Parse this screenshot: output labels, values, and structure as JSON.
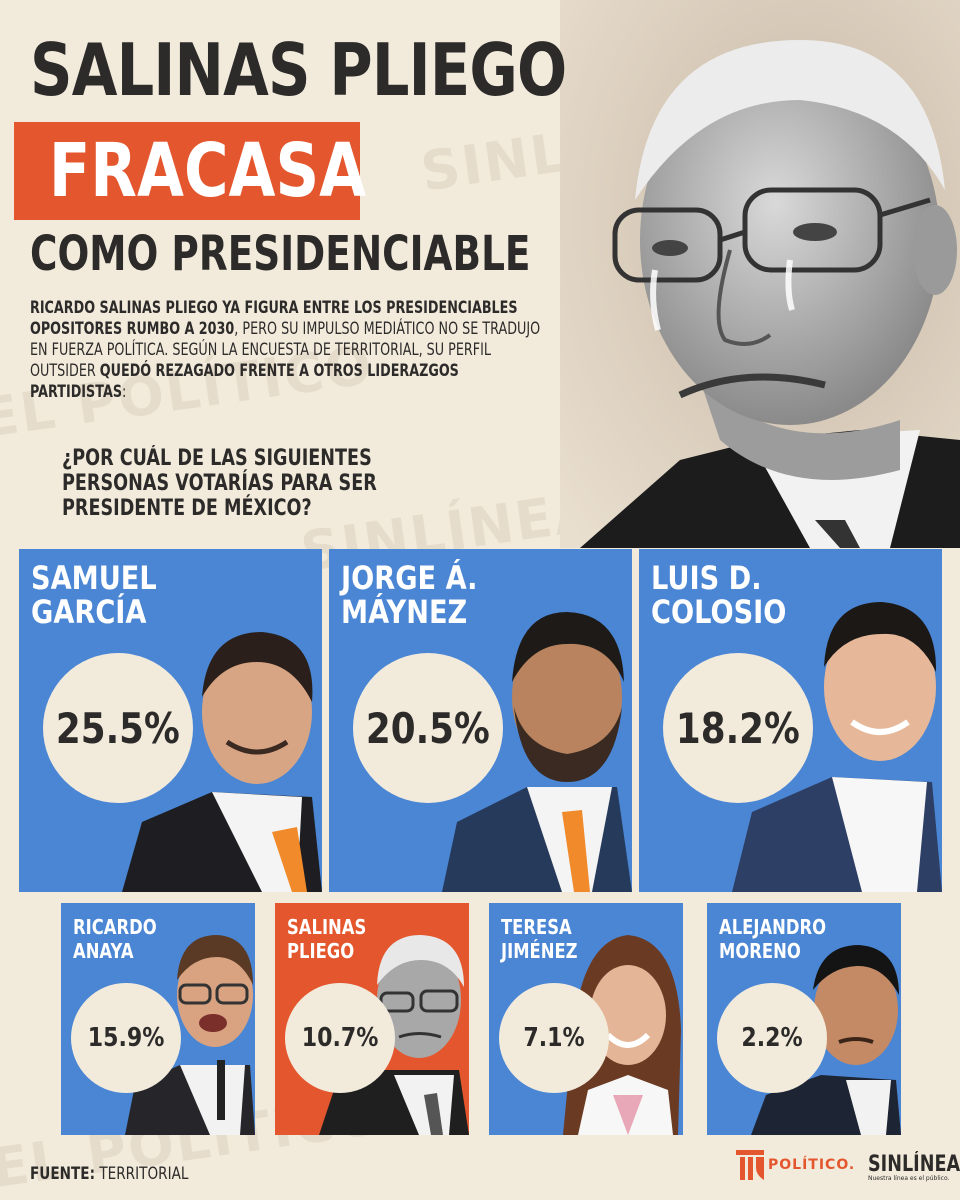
{
  "header": {
    "title_line1": "SALINAS PLIEGO",
    "title_line2": "FRACASA",
    "title_line3": "COMO PRESIDENCIABLE"
  },
  "intro": {
    "part1": "RICARDO SALINAS PLIEGO YA FIGURA ENTRE LOS PRESIDENCIABLES OPOSITORES RUMBO A 2030",
    "part2": ", PERO SU IMPULSO MEDIÁTICO NO SE TRADUJO EN FUERZA POLÍTICA. SEGÚN LA ENCUESTA DE TERRITORIAL, SU PERFIL OUTSIDER ",
    "part3": "QUEDÓ REZAGADO FRENTE A OTROS LIDERAZGOS PARTIDISTAS",
    "part4": ":"
  },
  "question": "¿POR CUÁL DE LAS SIGUIENTES PERSONAS VOTARÍAS PARA SER PRESIDENTE DE MÉXICO?",
  "candidates_top": [
    {
      "name": "SAMUEL\nGARCÍA",
      "value": "25.5%"
    },
    {
      "name": "JORGE Á.\nMÁYNEZ",
      "value": "20.5%"
    },
    {
      "name": "LUIS D.\nCOLOSIO",
      "value": "18.2%"
    }
  ],
  "candidates_bottom": [
    {
      "name": "RICARDO\nANAYA",
      "value": "15.9%"
    },
    {
      "name": "SALINAS\nPLIEGO",
      "value": "10.7%"
    },
    {
      "name": "TERESA\nJIMÉNEZ",
      "value": "7.1%"
    },
    {
      "name": "ALEJANDRO\nMORENO",
      "value": "2.2%"
    }
  ],
  "footer": {
    "label": "FUENTE:",
    "source": " TERRITORIAL"
  },
  "logos": {
    "politico": "POLÍTICO.",
    "sinlinea": "SINLÍNEA",
    "sinlinea_tagline": "Nuestra línea es el público."
  },
  "watermarks": {
    "politico": "EL POLÍTICO",
    "sinlinea": "SINLÍNEA"
  },
  "colors": {
    "background": "#f2ebdc",
    "blue": "#4a86d4",
    "orange": "#e4572e",
    "dark": "#2d2b2a"
  }
}
